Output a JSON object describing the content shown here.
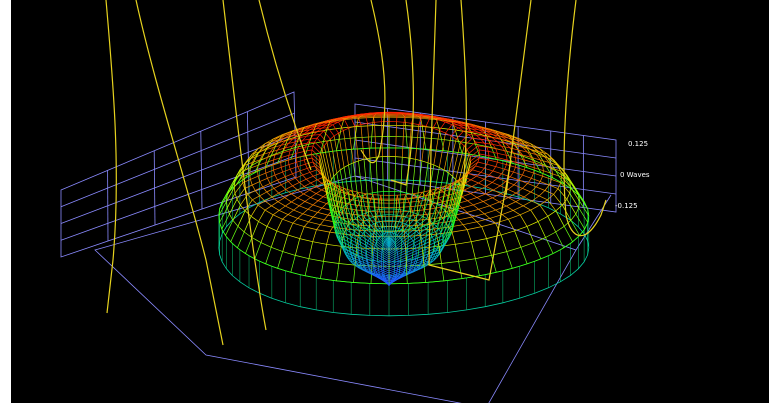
{
  "chart_data": {
    "type": "surface-3d-wireframe",
    "unit": "Waves",
    "z_ticks": [
      {
        "value": 0.125,
        "label": "0.125"
      },
      {
        "value": 0,
        "label": "0 Waves"
      },
      {
        "value": -0.125,
        "label": "-0.125"
      }
    ],
    "zlim": [
      -0.125,
      0.125
    ],
    "grid": true,
    "colormap": [
      "#2060ff",
      "#00c0c0",
      "#20ff20",
      "#e0ff00",
      "#ff2000"
    ],
    "colors": {
      "background": "#000000",
      "grid_lines": "#8a8aff",
      "profile_traces": "#e6d21e",
      "labels": "#ffffff"
    }
  }
}
